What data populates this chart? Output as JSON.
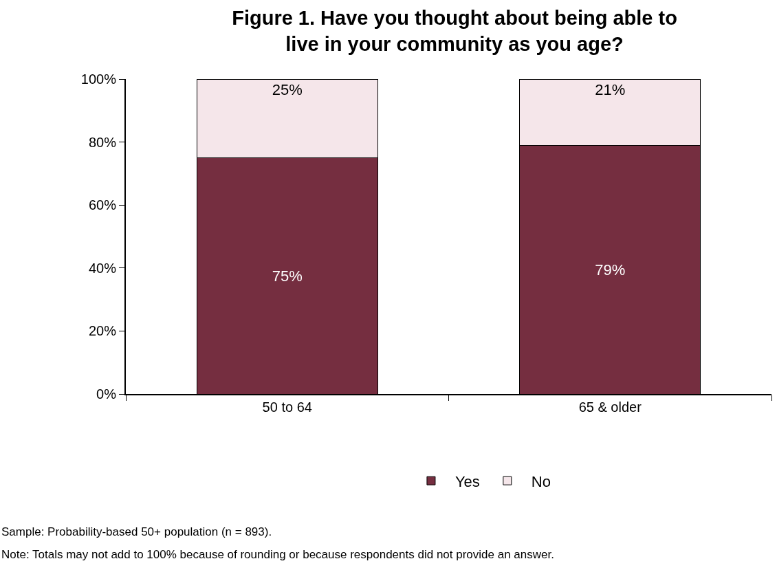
{
  "chart_data": {
    "type": "bar",
    "stacked": true,
    "title": "Figure 1. Have you thought about being able to live in your community as you age?",
    "categories": [
      "50 to 64",
      "65 & older"
    ],
    "series": [
      {
        "name": "Yes",
        "color": "#752e40",
        "values": [
          75,
          79
        ]
      },
      {
        "name": "No",
        "color": "#f5e6ea",
        "values": [
          25,
          21
        ]
      }
    ],
    "value_labels": [
      [
        "75%",
        "79%"
      ],
      [
        "25%",
        "21%"
      ]
    ],
    "ylim": [
      0,
      100
    ],
    "yticks": [
      {
        "value": 0,
        "label": "0%"
      },
      {
        "value": 20,
        "label": "20%"
      },
      {
        "value": 40,
        "label": "40%"
      },
      {
        "value": 60,
        "label": "60%"
      },
      {
        "value": 80,
        "label": "80%"
      },
      {
        "value": 100,
        "label": "100%"
      }
    ],
    "legend": "bottom",
    "annotations": [
      "Sample: Probability-based 50+ population (n = 893).",
      "Note: Totals may not add to 100% because of rounding or because respondents did not provide an answer."
    ]
  }
}
